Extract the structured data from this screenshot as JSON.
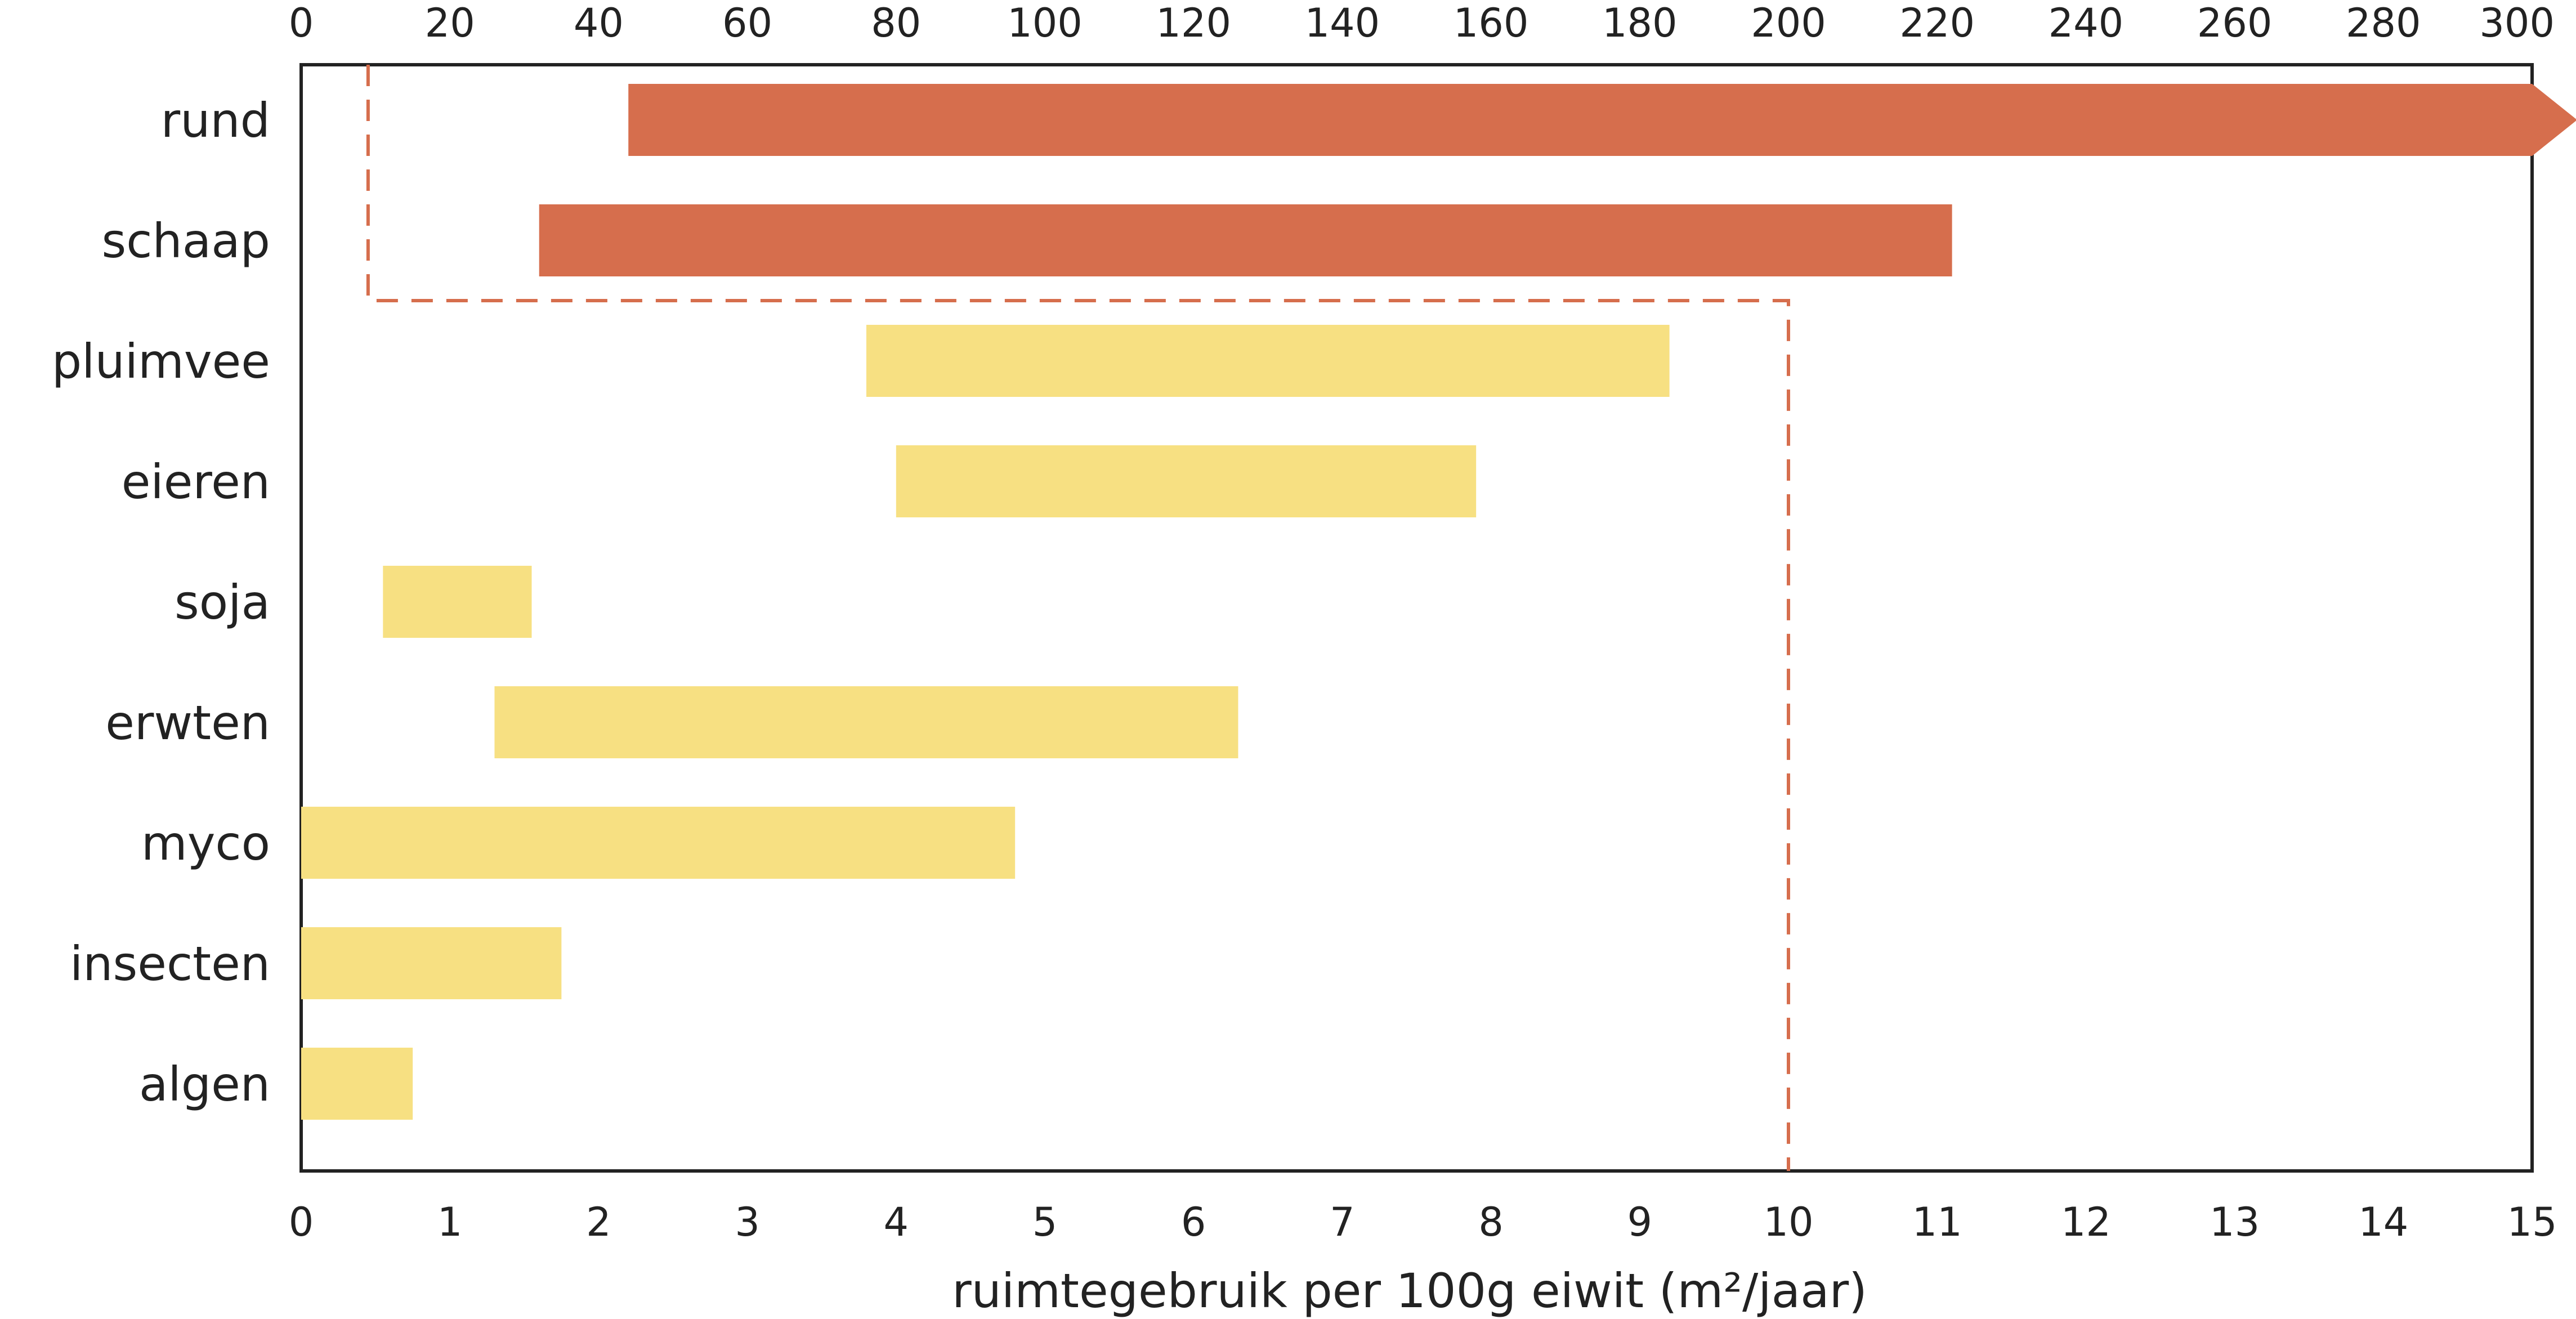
{
  "chart_data": {
    "type": "bar",
    "orientation": "horizontal-range",
    "xlabel": "ruimtegebruik per 100g eiwit (m²/jaar)",
    "bottom_axis": {
      "range": [
        0,
        15
      ],
      "ticks": [
        "0",
        "1",
        "2",
        "3",
        "4",
        "5",
        "6",
        "7",
        "8",
        "9",
        "10",
        "11",
        "12",
        "13",
        "14",
        "15"
      ]
    },
    "top_axis": {
      "range": [
        0,
        300
      ],
      "ticks": [
        "0",
        "20",
        "40",
        "60",
        "80",
        "100",
        "120",
        "140",
        "160",
        "180",
        "200",
        "220",
        "240",
        "260",
        "280",
        "300"
      ]
    },
    "categories": [
      "rund",
      "schaap",
      "pluimvee",
      "eieren",
      "soja",
      "erwten",
      "myco",
      "insecten",
      "algen"
    ],
    "series": [
      {
        "category": "rund",
        "axis": "top",
        "start": 44,
        "end": 300,
        "continues": true,
        "color": "#D66E4D"
      },
      {
        "category": "schaap",
        "axis": "top",
        "start": 32,
        "end": 222,
        "color": "#D66E4D"
      },
      {
        "category": "pluimvee",
        "axis": "bottom",
        "start": 3.8,
        "end": 9.2,
        "color": "#F7E082"
      },
      {
        "category": "eieren",
        "axis": "bottom",
        "start": 4.0,
        "end": 7.9,
        "color": "#F7E082"
      },
      {
        "category": "soja",
        "axis": "bottom",
        "start": 0.55,
        "end": 1.55,
        "color": "#F7E082"
      },
      {
        "category": "erwten",
        "axis": "bottom",
        "start": 1.3,
        "end": 6.3,
        "color": "#F7E082"
      },
      {
        "category": "myco",
        "axis": "bottom",
        "start": 0,
        "end": 4.8,
        "color": "#F7E082"
      },
      {
        "category": "insecten",
        "axis": "bottom",
        "start": 0,
        "end": 1.75,
        "color": "#F7E082"
      },
      {
        "category": "algen",
        "axis": "bottom",
        "start": 0,
        "end": 0.75,
        "color": "#F7E082"
      }
    ],
    "dashed_bracket": {
      "color": "#D66E4D",
      "from_x": 0.45,
      "to_x": 10.0,
      "encloses": [
        "rund",
        "schaap"
      ]
    },
    "grid": false,
    "legend": "none"
  }
}
